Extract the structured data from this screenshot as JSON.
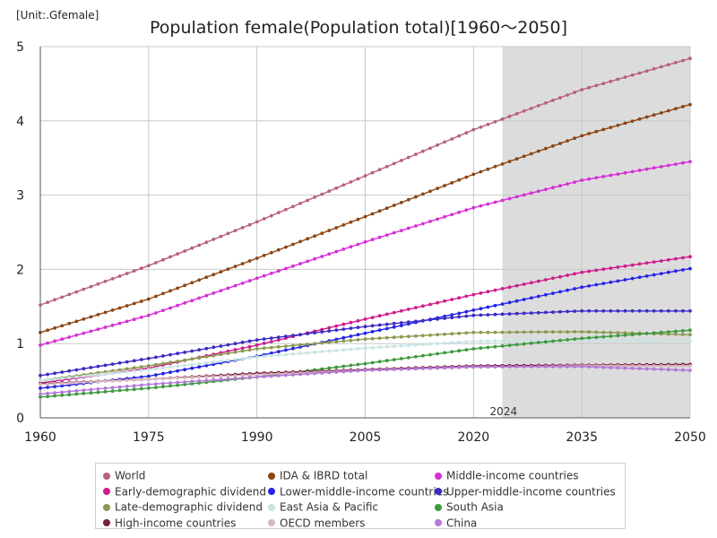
{
  "unit_label": "[Unit:.Gfemale]",
  "chart_data": {
    "type": "line",
    "title": "Population female(Population total)[1960～2050]",
    "xlabel": "",
    "ylabel": "",
    "xlim": [
      1960,
      2050
    ],
    "ylim": [
      0,
      5
    ],
    "x_ticks": [
      1960,
      1975,
      1990,
      2005,
      2020,
      2035,
      2050
    ],
    "y_ticks": [
      0,
      1,
      2,
      3,
      4,
      5
    ],
    "grid": true,
    "legend": "bottom",
    "forecast_region": {
      "start": 2024,
      "end": 2050,
      "label": "2024"
    },
    "series": [
      {
        "name": "World",
        "color": "#b8607f",
        "points": [
          [
            1960,
            1.52
          ],
          [
            1975,
            2.05
          ],
          [
            1990,
            2.64
          ],
          [
            2005,
            3.26
          ],
          [
            2020,
            3.88
          ],
          [
            2035,
            4.42
          ],
          [
            2050,
            4.84
          ]
        ]
      },
      {
        "name": "IDA & IBRD total",
        "color": "#8b4513",
        "points": [
          [
            1960,
            1.15
          ],
          [
            1975,
            1.6
          ],
          [
            1990,
            2.15
          ],
          [
            2005,
            2.71
          ],
          [
            2020,
            3.28
          ],
          [
            2035,
            3.8
          ],
          [
            2050,
            4.22
          ]
        ]
      },
      {
        "name": "Middle-income countries",
        "color": "#d62fd6",
        "points": [
          [
            1960,
            0.98
          ],
          [
            1975,
            1.38
          ],
          [
            1990,
            1.88
          ],
          [
            2005,
            2.37
          ],
          [
            2020,
            2.83
          ],
          [
            2035,
            3.2
          ],
          [
            2050,
            3.45
          ]
        ]
      },
      {
        "name": "Early-demographic dividend",
        "color": "#d11a8c",
        "points": [
          [
            1960,
            0.47
          ],
          [
            1975,
            0.67
          ],
          [
            1990,
            0.98
          ],
          [
            2005,
            1.33
          ],
          [
            2020,
            1.66
          ],
          [
            2035,
            1.96
          ],
          [
            2050,
            2.17
          ]
        ]
      },
      {
        "name": "Lower-middle-income countries",
        "color": "#2424e6",
        "points": [
          [
            1960,
            0.4
          ],
          [
            1975,
            0.56
          ],
          [
            1990,
            0.83
          ],
          [
            2005,
            1.14
          ],
          [
            2020,
            1.45
          ],
          [
            2035,
            1.76
          ],
          [
            2050,
            2.01
          ]
        ]
      },
      {
        "name": "Upper-middle-income countries",
        "color": "#3a2bc4",
        "points": [
          [
            1960,
            0.57
          ],
          [
            1975,
            0.8
          ],
          [
            1990,
            1.05
          ],
          [
            2005,
            1.23
          ],
          [
            2020,
            1.38
          ],
          [
            2035,
            1.44
          ],
          [
            2050,
            1.44
          ]
        ]
      },
      {
        "name": "Late-demographic dividend",
        "color": "#8a9a50",
        "points": [
          [
            1960,
            0.5
          ],
          [
            1975,
            0.7
          ],
          [
            1990,
            0.93
          ],
          [
            2005,
            1.06
          ],
          [
            2020,
            1.15
          ],
          [
            2035,
            1.16
          ],
          [
            2050,
            1.12
          ]
        ]
      },
      {
        "name": "East Asia & Pacific",
        "color": "#c8e4e4",
        "points": [
          [
            1960,
            0.5
          ],
          [
            1975,
            0.65
          ],
          [
            1990,
            0.82
          ],
          [
            2005,
            0.94
          ],
          [
            2020,
            1.03
          ],
          [
            2035,
            1.05
          ],
          [
            2050,
            1.03
          ]
        ]
      },
      {
        "name": "South Asia",
        "color": "#3c9a3c",
        "points": [
          [
            1960,
            0.28
          ],
          [
            1975,
            0.4
          ],
          [
            1990,
            0.55
          ],
          [
            2005,
            0.73
          ],
          [
            2020,
            0.93
          ],
          [
            2035,
            1.07
          ],
          [
            2050,
            1.18
          ]
        ]
      },
      {
        "name": "High-income countries",
        "color": "#7a1f40",
        "points": [
          [
            1960,
            0.46
          ],
          [
            1975,
            0.52
          ],
          [
            1990,
            0.6
          ],
          [
            2005,
            0.65
          ],
          [
            2020,
            0.7
          ],
          [
            2035,
            0.71
          ],
          [
            2050,
            0.72
          ]
        ]
      },
      {
        "name": "OECD members",
        "color": "#d8b8c0",
        "points": [
          [
            1960,
            0.45
          ],
          [
            1975,
            0.52
          ],
          [
            1990,
            0.58
          ],
          [
            2005,
            0.64
          ],
          [
            2020,
            0.68
          ],
          [
            2035,
            0.7
          ],
          [
            2050,
            0.7
          ]
        ]
      },
      {
        "name": "China",
        "color": "#b478d8",
        "points": [
          [
            1960,
            0.32
          ],
          [
            1975,
            0.45
          ],
          [
            1990,
            0.55
          ],
          [
            2005,
            0.64
          ],
          [
            2020,
            0.69
          ],
          [
            2035,
            0.69
          ],
          [
            2050,
            0.64
          ]
        ]
      }
    ]
  }
}
